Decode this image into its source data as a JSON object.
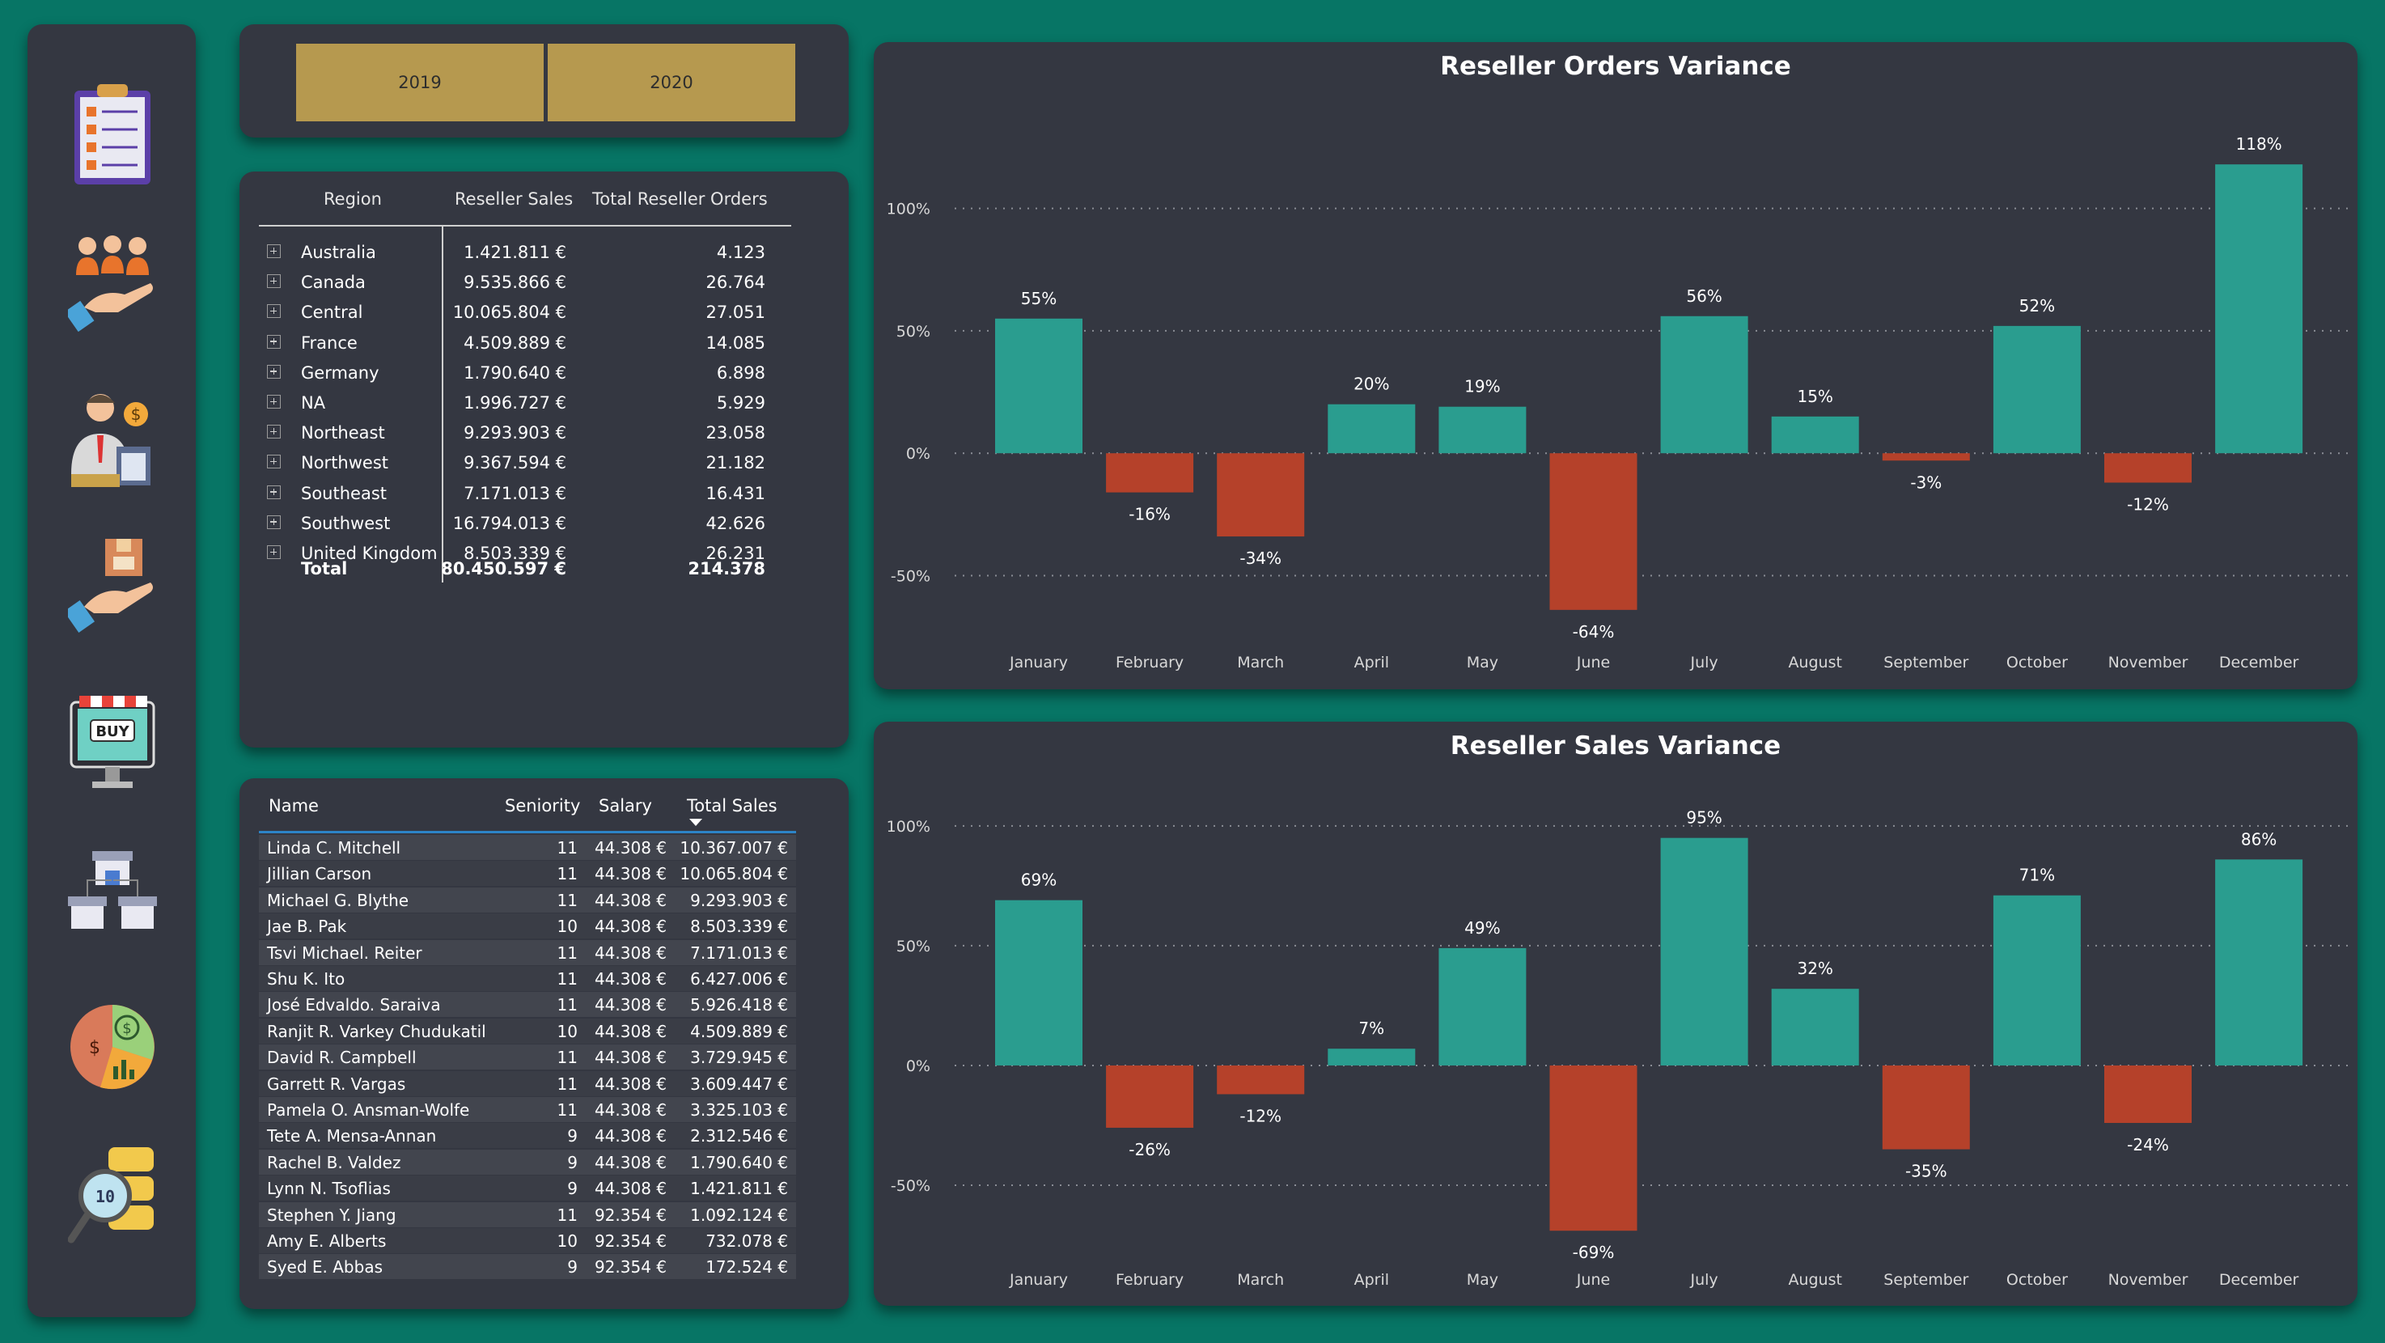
{
  "sidebar": {
    "items": [
      {
        "name": "clipboard-checklist-icon"
      },
      {
        "name": "people-hand-icon"
      },
      {
        "name": "salesman-icon"
      },
      {
        "name": "hand-box-icon"
      },
      {
        "name": "buy-monitor-icon"
      },
      {
        "name": "stores-icon"
      },
      {
        "name": "pie-money-icon"
      },
      {
        "name": "data-search-icon"
      }
    ]
  },
  "year_slicer": {
    "options": [
      "2019",
      "2020"
    ],
    "color": "#b6994f"
  },
  "region_table": {
    "headers": {
      "region": "Region",
      "sales": "Reseller Sales",
      "orders": "Total Reseller Orders"
    },
    "rows": [
      {
        "region": "Australia",
        "sales": "1.421.811 €",
        "orders": "4.123"
      },
      {
        "region": "Canada",
        "sales": "9.535.866 €",
        "orders": "26.764"
      },
      {
        "region": "Central",
        "sales": "10.065.804 €",
        "orders": "27.051"
      },
      {
        "region": "France",
        "sales": "4.509.889 €",
        "orders": "14.085"
      },
      {
        "region": "Germany",
        "sales": "1.790.640 €",
        "orders": "6.898"
      },
      {
        "region": "NA",
        "sales": "1.996.727 €",
        "orders": "5.929"
      },
      {
        "region": "Northeast",
        "sales": "9.293.903 €",
        "orders": "23.058"
      },
      {
        "region": "Northwest",
        "sales": "9.367.594 €",
        "orders": "21.182"
      },
      {
        "region": "Southeast",
        "sales": "7.171.013 €",
        "orders": "16.431"
      },
      {
        "region": "Southwest",
        "sales": "16.794.013 €",
        "orders": "42.626"
      },
      {
        "region": "United Kingdom",
        "sales": "8.503.339 €",
        "orders": "26.231"
      }
    ],
    "total": {
      "label": "Total",
      "sales": "80.450.597 €",
      "orders": "214.378"
    }
  },
  "employee_table": {
    "headers": {
      "name": "Name",
      "seniority": "Seniority",
      "salary": "Salary",
      "total_sales": "Total Sales"
    },
    "rows": [
      {
        "name": "Linda C. Mitchell",
        "seniority": "11",
        "salary": "44.308 €",
        "total_sales": "10.367.007 €"
      },
      {
        "name": "Jillian Carson",
        "seniority": "11",
        "salary": "44.308 €",
        "total_sales": "10.065.804 €"
      },
      {
        "name": "Michael G. Blythe",
        "seniority": "11",
        "salary": "44.308 €",
        "total_sales": "9.293.903 €"
      },
      {
        "name": "Jae B. Pak",
        "seniority": "10",
        "salary": "44.308 €",
        "total_sales": "8.503.339 €"
      },
      {
        "name": "Tsvi Michael. Reiter",
        "seniority": "11",
        "salary": "44.308 €",
        "total_sales": "7.171.013 €"
      },
      {
        "name": "Shu K. Ito",
        "seniority": "11",
        "salary": "44.308 €",
        "total_sales": "6.427.006 €"
      },
      {
        "name": "José Edvaldo. Saraiva",
        "seniority": "11",
        "salary": "44.308 €",
        "total_sales": "5.926.418 €"
      },
      {
        "name": "Ranjit R. Varkey Chudukatil",
        "seniority": "10",
        "salary": "44.308 €",
        "total_sales": "4.509.889 €"
      },
      {
        "name": "David R. Campbell",
        "seniority": "11",
        "salary": "44.308 €",
        "total_sales": "3.729.945 €"
      },
      {
        "name": "Garrett R. Vargas",
        "seniority": "11",
        "salary": "44.308 €",
        "total_sales": "3.609.447 €"
      },
      {
        "name": "Pamela O. Ansman-Wolfe",
        "seniority": "11",
        "salary": "44.308 €",
        "total_sales": "3.325.103 €"
      },
      {
        "name": "Tete A. Mensa-Annan",
        "seniority": "9",
        "salary": "44.308 €",
        "total_sales": "2.312.546 €"
      },
      {
        "name": "Rachel B. Valdez",
        "seniority": "9",
        "salary": "44.308 €",
        "total_sales": "1.790.640 €"
      },
      {
        "name": "Lynn N. Tsoflias",
        "seniority": "9",
        "salary": "44.308 €",
        "total_sales": "1.421.811 €"
      },
      {
        "name": "Stephen Y. Jiang",
        "seniority": "11",
        "salary": "92.354 €",
        "total_sales": "1.092.124 €"
      },
      {
        "name": "Amy E. Alberts",
        "seniority": "10",
        "salary": "92.354 €",
        "total_sales": "732.078 €"
      },
      {
        "name": "Syed E. Abbas",
        "seniority": "9",
        "salary": "92.354 €",
        "total_sales": "172.524 €"
      }
    ]
  },
  "colors": {
    "positive": "#2a9d8f",
    "negative": "#b5412a",
    "panel": "#343741",
    "background": "#077565"
  },
  "chart_data": [
    {
      "type": "bar",
      "title": "Reseller Orders Variance",
      "categories": [
        "January",
        "February",
        "March",
        "April",
        "May",
        "June",
        "July",
        "August",
        "September",
        "October",
        "November",
        "December"
      ],
      "values": [
        55,
        -16,
        -34,
        20,
        19,
        -64,
        56,
        15,
        -3,
        52,
        -12,
        118
      ],
      "labels": [
        "55%",
        "-16%",
        "-34%",
        "20%",
        "19%",
        "-64%",
        "56%",
        "15%",
        "-3%",
        "52%",
        "-12%",
        "118%"
      ],
      "y_ticks": [
        "100%",
        "50%",
        "0%",
        "-50%"
      ],
      "y_tick_values": [
        100,
        50,
        0,
        -50
      ],
      "ylim": [
        -70,
        125
      ],
      "grid": true
    },
    {
      "type": "bar",
      "title": "Reseller Sales Variance",
      "categories": [
        "January",
        "February",
        "March",
        "April",
        "May",
        "June",
        "July",
        "August",
        "September",
        "October",
        "November",
        "December"
      ],
      "values": [
        69,
        -26,
        -12,
        7,
        49,
        -69,
        95,
        32,
        -35,
        71,
        -24,
        86
      ],
      "labels": [
        "69%",
        "-26%",
        "-12%",
        "7%",
        "49%",
        "-69%",
        "95%",
        "32%",
        "-35%",
        "71%",
        "-24%",
        "86%"
      ],
      "y_ticks": [
        "100%",
        "50%",
        "0%",
        "-50%"
      ],
      "y_tick_values": [
        100,
        50,
        0,
        -50
      ],
      "ylim": [
        -75,
        103
      ],
      "grid": true
    }
  ]
}
